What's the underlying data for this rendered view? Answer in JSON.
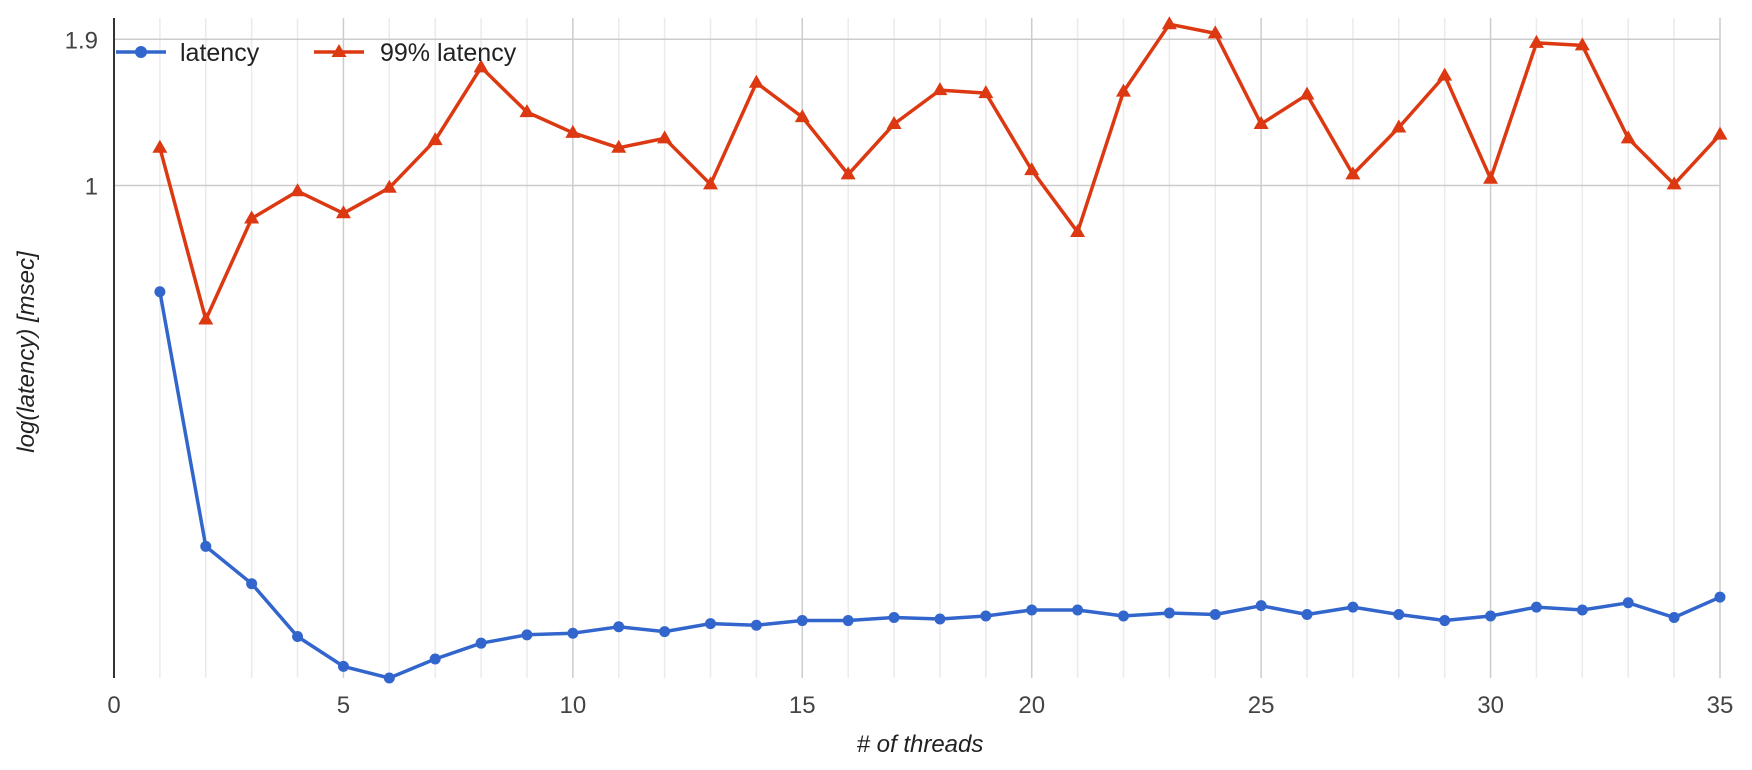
{
  "chart_data": {
    "type": "line",
    "title": "",
    "xlabel": "# of threads",
    "ylabel": "log(latency) [msec]",
    "y_scale": "log",
    "grid": true,
    "legend_position": "top-left",
    "xlim": [
      0,
      35
    ],
    "ylim": [
      0.115,
      2.05
    ],
    "x_ticks": [
      0,
      5,
      10,
      15,
      20,
      25,
      30,
      35
    ],
    "y_ticks": [
      1,
      1.9
    ],
    "y_tick_labels": [
      "1",
      "1.9"
    ],
    "x": [
      1,
      2,
      3,
      4,
      5,
      6,
      7,
      8,
      9,
      10,
      11,
      12,
      13,
      14,
      15,
      16,
      17,
      18,
      19,
      20,
      21,
      22,
      23,
      24,
      25,
      26,
      27,
      28,
      29,
      30,
      31,
      32,
      33,
      34,
      35
    ],
    "series": [
      {
        "name": "latency",
        "color": "#3366cc",
        "marker": "circle",
        "values": [
          0.627,
          0.205,
          0.174,
          0.138,
          0.121,
          0.115,
          0.125,
          0.134,
          0.139,
          0.14,
          0.144,
          0.141,
          0.146,
          0.145,
          0.148,
          0.148,
          0.15,
          0.149,
          0.151,
          0.155,
          0.155,
          0.151,
          0.153,
          0.152,
          0.158,
          0.152,
          0.157,
          0.152,
          0.148,
          0.151,
          0.157,
          0.155,
          0.16,
          0.15,
          0.164
        ]
      },
      {
        "name": "99% latency",
        "color": "#dc3912",
        "marker": "triangle",
        "values": [
          1.18,
          0.555,
          0.865,
          0.975,
          0.885,
          0.99,
          1.22,
          1.68,
          1.38,
          1.26,
          1.18,
          1.23,
          1.005,
          1.57,
          1.35,
          1.05,
          1.31,
          1.52,
          1.5,
          1.07,
          0.815,
          1.51,
          2.03,
          1.95,
          1.31,
          1.49,
          1.05,
          1.29,
          1.62,
          1.03,
          1.87,
          1.85,
          1.23,
          1.005,
          1.25
        ]
      }
    ]
  }
}
